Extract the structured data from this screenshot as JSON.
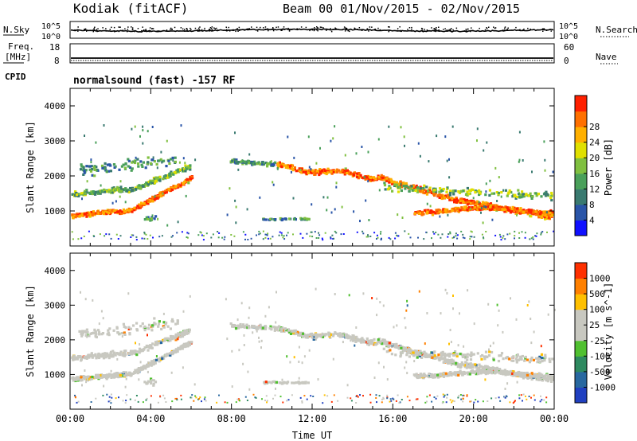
{
  "header": {
    "station": "Kodiak (fitACF)",
    "beam_info": "Beam 00  01/Nov/2015 - 02/Nov/2015"
  },
  "strip_labels": {
    "nsky": "N.Sky",
    "nsearch": "N.Search",
    "freq_line1": "Freq.",
    "freq_line2": "[MHz]",
    "nave": "Nave",
    "cpid": "CPID",
    "cpid_value": "normalsound (fast) -157 RF"
  },
  "strip_ticks": {
    "noise_top": "10^5",
    "noise_bottom": "10^0",
    "freq_top": "18",
    "freq_bottom": "8",
    "nave_top": "60",
    "nave_bottom": "0"
  },
  "colors": {
    "power_scale": [
      "#1010ff",
      "#2a55a8",
      "#3a7a70",
      "#4aa05a",
      "#80c040",
      "#e0e000",
      "#ffb000",
      "#ff7000",
      "#ff2000"
    ],
    "velocity_scale": [
      "#2040c0",
      "#2868a0",
      "#2e8a60",
      "#50c030",
      "#c8c8c0",
      "#c8c8c0",
      "#ffc000",
      "#ff8000",
      "#ff3000"
    ]
  },
  "chart_data": [
    {
      "type": "heatmap",
      "title": "",
      "xlabel": "",
      "ylabel": "Slant Range [km]",
      "x_ticks": [
        "00:00",
        "04:00",
        "08:00",
        "12:00",
        "16:00",
        "20:00",
        "00:00"
      ],
      "xlim_hours": [
        0,
        24
      ],
      "ylim": [
        0,
        4500
      ],
      "y_ticks": [
        1000,
        2000,
        3000,
        4000
      ],
      "colorbar_label": "Power [dB]",
      "colorbar_ticks": [
        "4",
        "8",
        "12",
        "16",
        "20",
        "24",
        "28"
      ],
      "colorbar_range": [
        0,
        32
      ]
    },
    {
      "type": "heatmap",
      "title": "",
      "xlabel": "Time UT",
      "ylabel": "Slant Range [km]",
      "x_ticks": [
        "00:00",
        "04:00",
        "08:00",
        "12:00",
        "16:00",
        "20:00",
        "00:00"
      ],
      "xlim_hours": [
        0,
        24
      ],
      "ylim": [
        0,
        4500
      ],
      "y_ticks": [
        1000,
        2000,
        3000,
        4000
      ],
      "colorbar_label": "Velocity [m s^-1]",
      "colorbar_ticks": [
        "1000",
        "500",
        "100",
        "25",
        "-25",
        "-100",
        "-500",
        "-1000"
      ],
      "colorbar_range": [
        -1000,
        1000
      ]
    }
  ]
}
